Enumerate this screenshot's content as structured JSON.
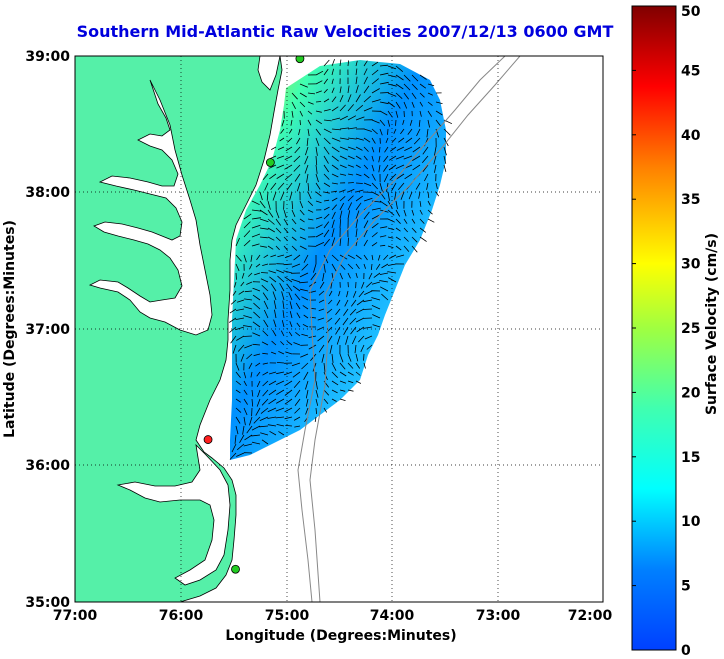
{
  "title": "Southern Mid-Atlantic Raw Velocities 2007/12/13 0600 GMT",
  "x_axis": {
    "label": "Longitude (Degrees:Minutes)",
    "ticks": [
      "77:00",
      "76:00",
      "75:00",
      "74:00",
      "73:00",
      "72:00"
    ]
  },
  "y_axis": {
    "label": "Latitude (Degrees:Minutes)",
    "ticks": [
      "39:00",
      "38:00",
      "37:00",
      "36:00",
      "35:00"
    ]
  },
  "colorbar": {
    "label": "Surface Velocity (cm/s)",
    "ticks": [
      "50",
      "45",
      "40",
      "35",
      "30",
      "25",
      "20",
      "15",
      "10",
      "5",
      "0"
    ],
    "min": 0,
    "max": 50
  },
  "colors": {
    "land": "#55f0a8",
    "title": "#0000dd",
    "station_green": "#22cc22",
    "station_red": "#ff2020"
  },
  "stations": [
    {
      "lon": -74.87,
      "lat": 38.98,
      "color": "green"
    },
    {
      "lon": -75.15,
      "lat": 38.22,
      "color": "green"
    },
    {
      "lon": -75.74,
      "lat": 36.19,
      "color": "red"
    },
    {
      "lon": -75.48,
      "lat": 35.24,
      "color": "green"
    }
  ]
}
